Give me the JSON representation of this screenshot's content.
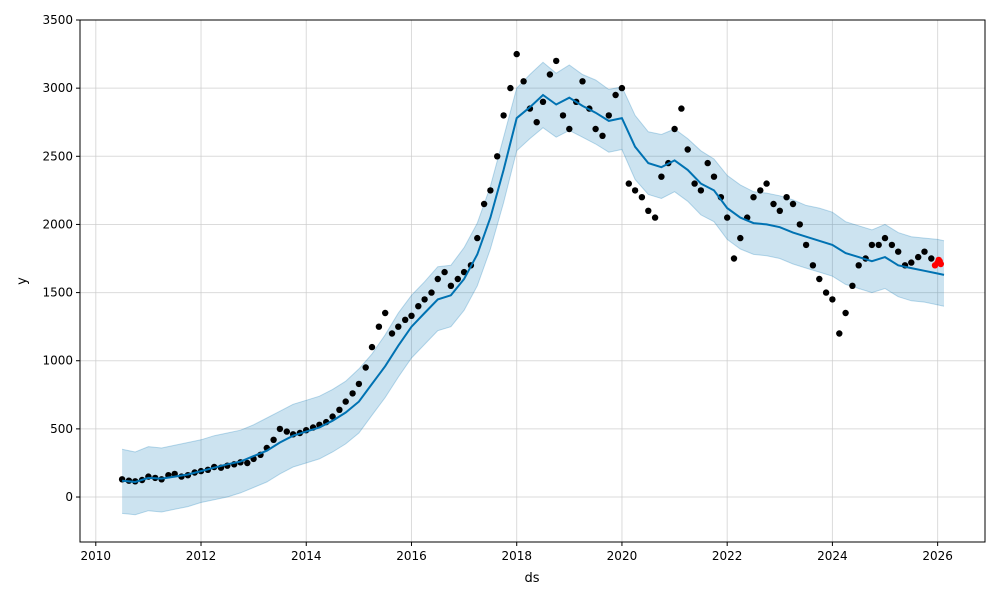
{
  "chart_data": {
    "type": "line",
    "title": "",
    "xlabel": "ds",
    "ylabel": "y",
    "xlim": [
      2009.7,
      2026.9
    ],
    "ylim": [
      -330,
      3500
    ],
    "grid": true,
    "legend": "none",
    "x_ticks": [
      {
        "value": 2010,
        "label": "2010"
      },
      {
        "value": 2012,
        "label": "2012"
      },
      {
        "value": 2014,
        "label": "2014"
      },
      {
        "value": 2016,
        "label": "2016"
      },
      {
        "value": 2018,
        "label": "2018"
      },
      {
        "value": 2020,
        "label": "2020"
      },
      {
        "value": 2022,
        "label": "2022"
      },
      {
        "value": 2024,
        "label": "2024"
      },
      {
        "value": 2026,
        "label": "2026"
      }
    ],
    "y_ticks": [
      {
        "value": 0,
        "label": "0"
      },
      {
        "value": 500,
        "label": "500"
      },
      {
        "value": 1000,
        "label": "1000"
      },
      {
        "value": 1500,
        "label": "1500"
      },
      {
        "value": 2000,
        "label": "2000"
      },
      {
        "value": 2500,
        "label": "2500"
      },
      {
        "value": 3000,
        "label": "3000"
      },
      {
        "value": 3500,
        "label": "3500"
      }
    ],
    "colors": {
      "observed": "#000000",
      "forecast": "#0072B2",
      "interval": "#0072B2",
      "recent": "#ff0000"
    },
    "series": [
      {
        "kind": "forecast-line",
        "x": [
          2010.5,
          2010.75,
          2011.0,
          2011.25,
          2011.5,
          2011.75,
          2012.0,
          2012.25,
          2012.5,
          2012.75,
          2013.0,
          2013.25,
          2013.5,
          2013.75,
          2014.0,
          2014.25,
          2014.5,
          2014.75,
          2015.0,
          2015.25,
          2015.5,
          2015.75,
          2016.0,
          2016.25,
          2016.5,
          2016.75,
          2017.0,
          2017.25,
          2017.5,
          2017.75,
          2018.0,
          2018.25,
          2018.5,
          2018.75,
          2019.0,
          2019.25,
          2019.5,
          2019.75,
          2020.0,
          2020.25,
          2020.5,
          2020.75,
          2021.0,
          2021.25,
          2021.5,
          2021.75,
          2022.0,
          2022.25,
          2022.5,
          2022.75,
          2023.0,
          2023.25,
          2023.5,
          2023.75,
          2024.0,
          2024.25,
          2024.5,
          2024.75,
          2025.0,
          2025.25,
          2025.5,
          2025.75,
          2026.0,
          2026.12
        ],
        "y": [
          120,
          110,
          140,
          135,
          150,
          165,
          190,
          215,
          240,
          260,
          300,
          340,
          400,
          450,
          480,
          510,
          560,
          620,
          700,
          830,
          960,
          1110,
          1250,
          1350,
          1450,
          1480,
          1600,
          1780,
          2050,
          2400,
          2780,
          2860,
          2950,
          2880,
          2930,
          2870,
          2820,
          2760,
          2780,
          2570,
          2450,
          2420,
          2470,
          2400,
          2300,
          2250,
          2120,
          2050,
          2010,
          2000,
          1980,
          1940,
          1910,
          1880,
          1850,
          1790,
          1760,
          1730,
          1760,
          1700,
          1680,
          1660,
          1640,
          1630
        ]
      },
      {
        "kind": "uncertainty-upper",
        "x": [
          2010.5,
          2010.75,
          2011.0,
          2011.25,
          2011.5,
          2011.75,
          2012.0,
          2012.25,
          2012.5,
          2012.75,
          2013.0,
          2013.25,
          2013.5,
          2013.75,
          2014.0,
          2014.25,
          2014.5,
          2014.75,
          2015.0,
          2015.25,
          2015.5,
          2015.75,
          2016.0,
          2016.25,
          2016.5,
          2016.75,
          2017.0,
          2017.25,
          2017.5,
          2017.75,
          2018.0,
          2018.25,
          2018.5,
          2018.75,
          2019.0,
          2019.25,
          2019.5,
          2019.75,
          2020.0,
          2020.25,
          2020.5,
          2020.75,
          2021.0,
          2021.25,
          2021.5,
          2021.75,
          2022.0,
          2022.25,
          2022.5,
          2022.75,
          2023.0,
          2023.25,
          2023.5,
          2023.75,
          2024.0,
          2024.25,
          2024.5,
          2024.75,
          2025.0,
          2025.25,
          2025.5,
          2025.75,
          2026.0,
          2026.12
        ],
        "y": [
          350,
          330,
          370,
          360,
          380,
          400,
          420,
          450,
          470,
          490,
          530,
          580,
          630,
          680,
          710,
          740,
          790,
          850,
          940,
          1050,
          1190,
          1350,
          1480,
          1580,
          1690,
          1700,
          1830,
          2010,
          2280,
          2640,
          3000,
          3100,
          3190,
          3110,
          3170,
          3100,
          3060,
          2990,
          3010,
          2800,
          2680,
          2660,
          2700,
          2630,
          2540,
          2480,
          2360,
          2290,
          2240,
          2230,
          2210,
          2180,
          2140,
          2120,
          2090,
          2020,
          1990,
          1960,
          2000,
          1940,
          1910,
          1900,
          1890,
          1880
        ]
      },
      {
        "kind": "uncertainty-lower",
        "x": [
          2010.5,
          2010.75,
          2011.0,
          2011.25,
          2011.5,
          2011.75,
          2012.0,
          2012.25,
          2012.5,
          2012.75,
          2013.0,
          2013.25,
          2013.5,
          2013.75,
          2014.0,
          2014.25,
          2014.5,
          2014.75,
          2015.0,
          2015.25,
          2015.5,
          2015.75,
          2016.0,
          2016.25,
          2016.5,
          2016.75,
          2017.0,
          2017.25,
          2017.5,
          2017.75,
          2018.0,
          2018.25,
          2018.5,
          2018.75,
          2019.0,
          2019.25,
          2019.5,
          2019.75,
          2020.0,
          2020.25,
          2020.5,
          2020.75,
          2021.0,
          2021.25,
          2021.5,
          2021.75,
          2022.0,
          2022.25,
          2022.5,
          2022.75,
          2023.0,
          2023.25,
          2023.5,
          2023.75,
          2024.0,
          2024.25,
          2024.5,
          2024.75,
          2025.0,
          2025.25,
          2025.5,
          2025.75,
          2026.0,
          2026.12
        ],
        "y": [
          -120,
          -130,
          -100,
          -110,
          -90,
          -70,
          -40,
          -20,
          0,
          30,
          70,
          110,
          170,
          220,
          250,
          280,
          330,
          390,
          470,
          600,
          730,
          880,
          1020,
          1120,
          1220,
          1250,
          1370,
          1550,
          1820,
          2160,
          2540,
          2630,
          2710,
          2640,
          2690,
          2640,
          2590,
          2530,
          2550,
          2330,
          2220,
          2190,
          2240,
          2170,
          2070,
          2020,
          1890,
          1820,
          1780,
          1770,
          1750,
          1710,
          1680,
          1650,
          1620,
          1560,
          1530,
          1500,
          1530,
          1470,
          1440,
          1430,
          1410,
          1400
        ]
      },
      {
        "kind": "observed-points",
        "x": [
          2010.5,
          2010.63,
          2010.75,
          2010.88,
          2011.0,
          2011.13,
          2011.25,
          2011.38,
          2011.5,
          2011.63,
          2011.75,
          2011.88,
          2012.0,
          2012.13,
          2012.25,
          2012.38,
          2012.5,
          2012.63,
          2012.75,
          2012.88,
          2013.0,
          2013.13,
          2013.25,
          2013.38,
          2013.5,
          2013.63,
          2013.75,
          2013.88,
          2014.0,
          2014.13,
          2014.25,
          2014.38,
          2014.5,
          2014.63,
          2014.75,
          2014.88,
          2015.0,
          2015.13,
          2015.25,
          2015.38,
          2015.5,
          2015.63,
          2015.75,
          2015.88,
          2016.0,
          2016.13,
          2016.25,
          2016.38,
          2016.5,
          2016.63,
          2016.75,
          2016.88,
          2017.0,
          2017.13,
          2017.25,
          2017.38,
          2017.5,
          2017.63,
          2017.75,
          2017.88,
          2018.0,
          2018.13,
          2018.25,
          2018.38,
          2018.5,
          2018.63,
          2018.75,
          2018.88,
          2019.0,
          2019.13,
          2019.25,
          2019.38,
          2019.5,
          2019.63,
          2019.75,
          2019.88,
          2020.0,
          2020.13,
          2020.25,
          2020.38,
          2020.5,
          2020.63,
          2020.75,
          2020.88,
          2021.0,
          2021.13,
          2021.25,
          2021.38,
          2021.5,
          2021.63,
          2021.75,
          2021.88,
          2022.0,
          2022.13,
          2022.25,
          2022.38,
          2022.5,
          2022.63,
          2022.75,
          2022.88,
          2023.0,
          2023.13,
          2023.25,
          2023.38,
          2023.5,
          2023.63,
          2023.75,
          2023.88,
          2024.0,
          2024.13,
          2024.25,
          2024.38,
          2024.5,
          2024.63,
          2024.75,
          2024.88,
          2025.0,
          2025.13,
          2025.25,
          2025.38,
          2025.5,
          2025.63,
          2025.75,
          2025.88
        ],
        "y": [
          130,
          120,
          115,
          125,
          150,
          140,
          130,
          160,
          170,
          150,
          160,
          180,
          190,
          200,
          220,
          215,
          230,
          240,
          255,
          250,
          280,
          310,
          360,
          420,
          500,
          480,
          460,
          470,
          490,
          510,
          530,
          550,
          590,
          640,
          700,
          760,
          830,
          950,
          1100,
          1250,
          1350,
          1200,
          1250,
          1300,
          1330,
          1400,
          1450,
          1500,
          1600,
          1650,
          1550,
          1600,
          1650,
          1700,
          1900,
          2150,
          2250,
          2500,
          2800,
          3000,
          3250,
          3050,
          2850,
          2750,
          2900,
          3100,
          3200,
          2800,
          2700,
          2900,
          3050,
          2850,
          2700,
          2650,
          2800,
          2950,
          3000,
          2300,
          2250,
          2200,
          2100,
          2050,
          2350,
          2450,
          2700,
          2850,
          2550,
          2300,
          2250,
          2450,
          2350,
          2200,
          2050,
          1750,
          1900,
          2050,
          2200,
          2250,
          2300,
          2150,
          2100,
          2200,
          2150,
          2000,
          1850,
          1700,
          1600,
          1500,
          1450,
          1200,
          1350,
          1550,
          1700,
          1750,
          1850,
          1850,
          1900,
          1850,
          1800,
          1700,
          1720,
          1760,
          1800,
          1750
        ]
      },
      {
        "kind": "recent-points",
        "x": [
          2025.95,
          2026.0,
          2026.02,
          2026.04,
          2026.06
        ],
        "y": [
          1700,
          1720,
          1740,
          1730,
          1710
        ]
      }
    ]
  }
}
